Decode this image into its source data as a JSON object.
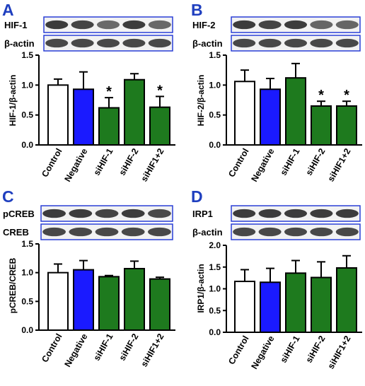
{
  "colors": {
    "control": "#ffffff",
    "negative": "#1a1aff",
    "si": "#1e7a1e",
    "blot_frame": "#2a3fd6",
    "panel_letter": "#1f3fbf"
  },
  "chart_data": [
    {
      "type": "bar",
      "panel": "A",
      "blots": [
        "HIF-1",
        "β-actin"
      ],
      "categories": [
        "Control",
        "Negative",
        "siHIF-1",
        "siHIF-2",
        "siHIF1+2"
      ],
      "values": [
        1.0,
        0.93,
        0.62,
        1.09,
        0.63
      ],
      "errors": [
        0.1,
        0.29,
        0.17,
        0.1,
        0.18
      ],
      "significant": [
        false,
        false,
        true,
        false,
        true
      ],
      "ylabel": "HIF-1/β-actin",
      "ylim": [
        0,
        1.5
      ],
      "yticks": [
        "0.0",
        "0.5",
        "1.0",
        "1.5"
      ]
    },
    {
      "type": "bar",
      "panel": "B",
      "blots": [
        "HIF-2",
        "β-actin"
      ],
      "categories": [
        "Control",
        "Negative",
        "siHIF-1",
        "siHIF-2",
        "siHIF1+2"
      ],
      "values": [
        1.06,
        0.93,
        1.12,
        0.65,
        0.65
      ],
      "errors": [
        0.19,
        0.18,
        0.24,
        0.08,
        0.08
      ],
      "significant": [
        false,
        false,
        false,
        true,
        true
      ],
      "ylabel": "HIF-2/β-actin",
      "ylim": [
        0,
        1.5
      ],
      "yticks": [
        "0.0",
        "0.5",
        "1.0",
        "1.5"
      ]
    },
    {
      "type": "bar",
      "panel": "C",
      "blots": [
        "pCREB",
        "CREB"
      ],
      "categories": [
        "Control",
        "Negative",
        "siHIF-1",
        "siHIF-2",
        "siHIF1+2"
      ],
      "values": [
        1.0,
        1.05,
        0.93,
        1.07,
        0.89
      ],
      "errors": [
        0.15,
        0.16,
        0.02,
        0.13,
        0.03
      ],
      "significant": [
        false,
        false,
        false,
        false,
        false
      ],
      "ylabel": "pCREB/CREB",
      "ylim": [
        0,
        1.5
      ],
      "yticks": [
        "0.0",
        "0.5",
        "1.0",
        "1.5"
      ]
    },
    {
      "type": "bar",
      "panel": "D",
      "blots": [
        "IRP1",
        "β-actin"
      ],
      "categories": [
        "Control",
        "Negative",
        "siHIF-1",
        "siHIF-2",
        "siHIF1+2"
      ],
      "values": [
        1.17,
        1.15,
        1.36,
        1.26,
        1.48
      ],
      "errors": [
        0.27,
        0.32,
        0.29,
        0.36,
        0.28
      ],
      "significant": [
        false,
        false,
        false,
        false,
        false
      ],
      "ylabel": "IRP1/β-actin",
      "ylim": [
        0,
        2.0
      ],
      "yticks": [
        "0.0",
        "0.5",
        "1.0",
        "1.5",
        "2.0"
      ]
    }
  ]
}
